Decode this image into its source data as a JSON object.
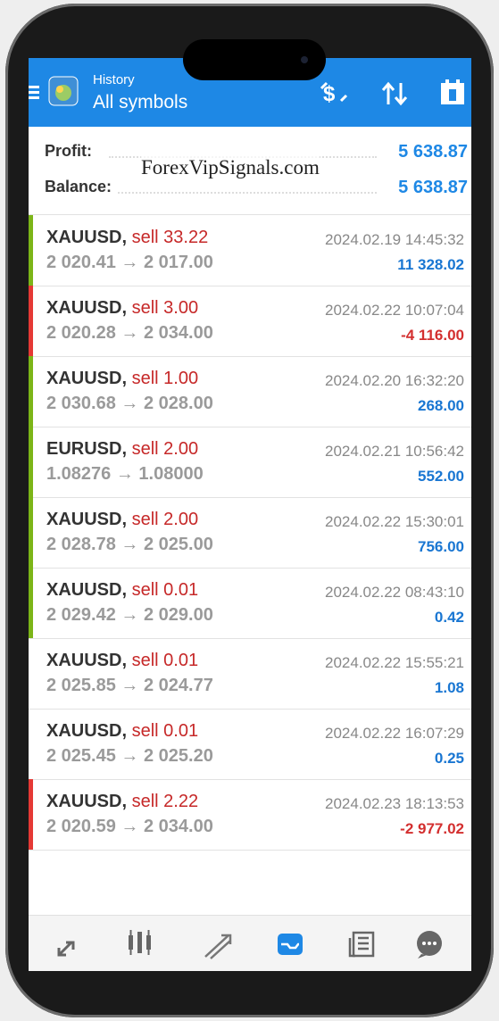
{
  "header": {
    "subtitle": "History",
    "title": "All symbols"
  },
  "summary": {
    "profit_label": "Profit:",
    "profit": "5 638.87",
    "balance_label": "Balance:",
    "balance": "5 638.87"
  },
  "watermark": "ForexVipSignals.com",
  "trades": [
    {
      "symbol": "XAUUSD,",
      "action": "sell 33.22",
      "time": "2024.02.19 14:45:32",
      "prices": "2 020.41 → 2 017.00",
      "profit": "11 328.02",
      "profit_color": "#1976d2",
      "marker_color": "#7cb518"
    },
    {
      "symbol": "XAUUSD,",
      "action": "sell 3.00",
      "time": "2024.02.22 10:07:04",
      "prices": "2 020.28 → 2 034.00",
      "profit": "-4 116.00",
      "profit_color": "#d32f2f",
      "marker_color": "#e53935"
    },
    {
      "symbol": "XAUUSD,",
      "action": "sell 1.00",
      "time": "2024.02.20 16:32:20",
      "prices": "2 030.68 → 2 028.00",
      "profit": "268.00",
      "profit_color": "#1976d2",
      "marker_color": "#7cb518"
    },
    {
      "symbol": "EURUSD,",
      "action": "sell 2.00",
      "time": "2024.02.21 10:56:42",
      "prices": "1.08276 → 1.08000",
      "profit": "552.00",
      "profit_color": "#1976d2",
      "marker_color": "#7cb518"
    },
    {
      "symbol": "XAUUSD,",
      "action": "sell 2.00",
      "time": "2024.02.22 15:30:01",
      "prices": "2 028.78 → 2 025.00",
      "profit": "756.00",
      "profit_color": "#1976d2",
      "marker_color": "#7cb518"
    },
    {
      "symbol": "XAUUSD,",
      "action": "sell 0.01",
      "time": "2024.02.22 08:43:10",
      "prices": "2 029.42 → 2 029.00",
      "profit": "0.42",
      "profit_color": "#1976d2",
      "marker_color": "#7cb518"
    },
    {
      "symbol": "XAUUSD,",
      "action": "sell 0.01",
      "time": "2024.02.22 15:55:21",
      "prices": "2 025.85 → 2 024.77",
      "profit": "1.08",
      "profit_color": "#1976d2"
    },
    {
      "symbol": "XAUUSD,",
      "action": "sell 0.01",
      "time": "2024.02.22 16:07:29",
      "prices": "2 025.45 → 2 025.20",
      "profit": "0.25",
      "profit_color": "#1976d2"
    },
    {
      "symbol": "XAUUSD,",
      "action": "sell 2.22",
      "time": "2024.02.23 18:13:53",
      "prices": "2 020.59 → 2 034.00",
      "profit": "-2 977.02",
      "profit_color": "#d32f2f",
      "marker_color": "#e53935"
    }
  ]
}
